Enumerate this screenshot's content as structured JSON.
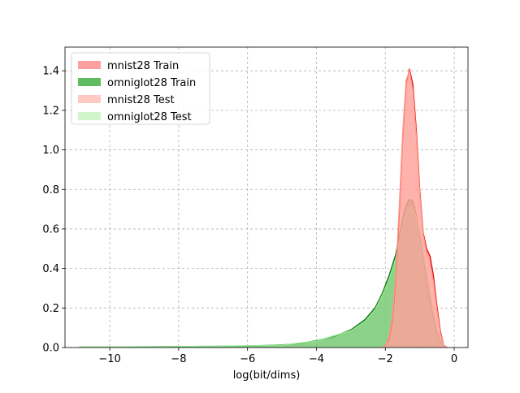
{
  "chart_data": {
    "type": "area",
    "title": "",
    "xlabel": "log(bit/dims)",
    "ylabel": "",
    "xlim": [
      -11.3,
      0.4
    ],
    "ylim": [
      0,
      1.52
    ],
    "xticks": [
      -10,
      -8,
      -6,
      -4,
      -2,
      0
    ],
    "xtick_labels": [
      "−10",
      "−8",
      "−6",
      "−4",
      "−2",
      "0"
    ],
    "yticks": [
      0.0,
      0.2,
      0.4,
      0.6,
      0.8,
      1.0,
      1.2,
      1.4
    ],
    "ytick_labels": [
      "0.0",
      "0.2",
      "0.4",
      "0.6",
      "0.8",
      "1.0",
      "1.2",
      "1.4"
    ],
    "grid": true,
    "legend_position": "top-left",
    "series": [
      {
        "name": "mnist28 Train",
        "color": "#ff8080",
        "line_color": "#e00000",
        "points": [
          [
            -2.1,
            0
          ],
          [
            -2.0,
            0.01
          ],
          [
            -1.9,
            0.04
          ],
          [
            -1.8,
            0.13
          ],
          [
            -1.7,
            0.33
          ],
          [
            -1.6,
            0.66
          ],
          [
            -1.5,
            1.05
          ],
          [
            -1.4,
            1.33
          ],
          [
            -1.3,
            1.41
          ],
          [
            -1.2,
            1.33
          ],
          [
            -1.1,
            1.1
          ],
          [
            -1.0,
            0.8
          ],
          [
            -0.9,
            0.58
          ],
          [
            -0.8,
            0.5
          ],
          [
            -0.7,
            0.46
          ],
          [
            -0.6,
            0.36
          ],
          [
            -0.5,
            0.21
          ],
          [
            -0.4,
            0.08
          ],
          [
            -0.3,
            0.01
          ],
          [
            -0.2,
            0
          ]
        ]
      },
      {
        "name": "omniglot28 Train",
        "color": "#3aab3a",
        "line_color": "#107010",
        "points": [
          [
            -10.9,
            0.002
          ],
          [
            -10.0,
            0.003
          ],
          [
            -9.0,
            0.004
          ],
          [
            -8.0,
            0.005
          ],
          [
            -7.0,
            0.006
          ],
          [
            -6.0,
            0.008
          ],
          [
            -5.0,
            0.013
          ],
          [
            -4.5,
            0.02
          ],
          [
            -4.0,
            0.035
          ],
          [
            -3.5,
            0.055
          ],
          [
            -3.0,
            0.09
          ],
          [
            -2.6,
            0.14
          ],
          [
            -2.3,
            0.2
          ],
          [
            -2.1,
            0.27
          ],
          [
            -1.9,
            0.36
          ],
          [
            -1.7,
            0.47
          ],
          [
            -1.6,
            0.56
          ],
          [
            -1.5,
            0.65
          ],
          [
            -1.4,
            0.72
          ],
          [
            -1.3,
            0.75
          ],
          [
            -1.2,
            0.74
          ],
          [
            -1.1,
            0.67
          ],
          [
            -1.0,
            0.57
          ],
          [
            -0.9,
            0.46
          ],
          [
            -0.8,
            0.34
          ],
          [
            -0.7,
            0.23
          ],
          [
            -0.6,
            0.14
          ],
          [
            -0.5,
            0.07
          ],
          [
            -0.4,
            0.03
          ],
          [
            -0.3,
            0.01
          ],
          [
            -0.2,
            0
          ]
        ]
      },
      {
        "name": "mnist28 Test",
        "color": "#ffb3a8",
        "line_color": "#ff9a8a",
        "points": [
          [
            -2.1,
            0
          ],
          [
            -2.0,
            0.01
          ],
          [
            -1.9,
            0.05
          ],
          [
            -1.8,
            0.15
          ],
          [
            -1.7,
            0.36
          ],
          [
            -1.6,
            0.7
          ],
          [
            -1.5,
            1.08
          ],
          [
            -1.4,
            1.35
          ],
          [
            -1.3,
            1.4
          ],
          [
            -1.2,
            1.3
          ],
          [
            -1.1,
            1.07
          ],
          [
            -1.0,
            0.78
          ],
          [
            -0.9,
            0.57
          ],
          [
            -0.8,
            0.48
          ],
          [
            -0.7,
            0.43
          ],
          [
            -0.6,
            0.33
          ],
          [
            -0.5,
            0.19
          ],
          [
            -0.4,
            0.07
          ],
          [
            -0.3,
            0.01
          ],
          [
            -0.2,
            0
          ]
        ]
      },
      {
        "name": "omniglot28 Test",
        "color": "#b7f0b0",
        "line_color": "#90e890",
        "points": [
          [
            -10.9,
            0.002
          ],
          [
            -9.0,
            0.004
          ],
          [
            -7.0,
            0.006
          ],
          [
            -5.0,
            0.012
          ],
          [
            -4.0,
            0.033
          ],
          [
            -3.0,
            0.085
          ],
          [
            -2.6,
            0.13
          ],
          [
            -2.3,
            0.19
          ],
          [
            -2.1,
            0.26
          ],
          [
            -1.9,
            0.34
          ],
          [
            -1.7,
            0.45
          ],
          [
            -1.6,
            0.53
          ],
          [
            -1.5,
            0.62
          ],
          [
            -1.4,
            0.68
          ],
          [
            -1.3,
            0.71
          ],
          [
            -1.2,
            0.71
          ],
          [
            -1.1,
            0.66
          ],
          [
            -1.0,
            0.58
          ],
          [
            -0.9,
            0.48
          ],
          [
            -0.8,
            0.37
          ],
          [
            -0.7,
            0.27
          ],
          [
            -0.6,
            0.17
          ],
          [
            -0.5,
            0.09
          ],
          [
            -0.4,
            0.04
          ],
          [
            -0.3,
            0.01
          ],
          [
            -0.2,
            0
          ]
        ]
      }
    ]
  }
}
